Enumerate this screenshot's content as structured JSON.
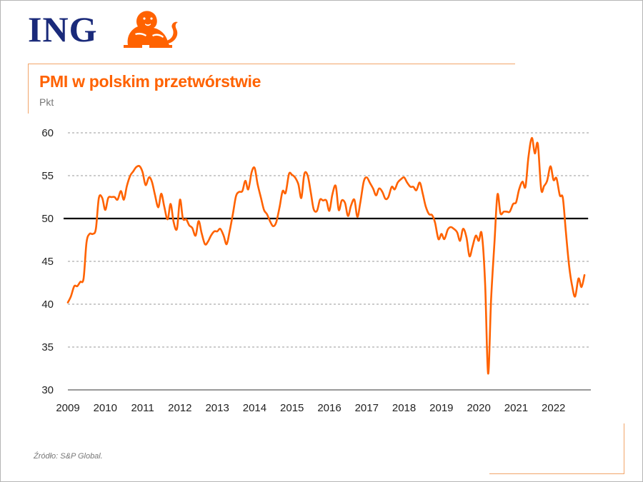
{
  "brand": {
    "logo_text": "ING",
    "logo_color": "#1a2a7a",
    "accent_color": "#ff6200"
  },
  "chart_data": {
    "type": "line",
    "title": "PMI w polskim przetwórstwie",
    "ylabel": "Pkt",
    "xlabel": "",
    "ylim": [
      30,
      60
    ],
    "xlim": [
      2009.0,
      2023.0
    ],
    "yticks": [
      "60",
      "55",
      "50",
      "45",
      "40",
      "35",
      "30"
    ],
    "xticks": [
      "2009",
      "2010",
      "2011",
      "2012",
      "2013",
      "2014",
      "2015",
      "2016",
      "2017",
      "2018",
      "2019",
      "2020",
      "2021",
      "2022"
    ],
    "reference_line": {
      "y": 50,
      "color": "#000000"
    },
    "series": [
      {
        "name": "PMI",
        "color": "#ff6200",
        "x": [
          2009.0,
          2009.08,
          2009.17,
          2009.25,
          2009.33,
          2009.42,
          2009.5,
          2009.58,
          2009.67,
          2009.75,
          2009.83,
          2009.92,
          2010.0,
          2010.08,
          2010.17,
          2010.25,
          2010.33,
          2010.42,
          2010.5,
          2010.58,
          2010.67,
          2010.75,
          2010.83,
          2010.92,
          2011.0,
          2011.08,
          2011.17,
          2011.25,
          2011.33,
          2011.42,
          2011.5,
          2011.58,
          2011.67,
          2011.75,
          2011.83,
          2011.92,
          2012.0,
          2012.08,
          2012.17,
          2012.25,
          2012.33,
          2012.42,
          2012.5,
          2012.58,
          2012.67,
          2012.75,
          2012.83,
          2012.92,
          2013.0,
          2013.08,
          2013.17,
          2013.25,
          2013.33,
          2013.42,
          2013.5,
          2013.58,
          2013.67,
          2013.75,
          2013.83,
          2013.92,
          2014.0,
          2014.08,
          2014.17,
          2014.25,
          2014.33,
          2014.42,
          2014.5,
          2014.58,
          2014.67,
          2014.75,
          2014.83,
          2014.92,
          2015.0,
          2015.08,
          2015.17,
          2015.25,
          2015.33,
          2015.42,
          2015.5,
          2015.58,
          2015.67,
          2015.75,
          2015.83,
          2015.92,
          2016.0,
          2016.08,
          2016.17,
          2016.25,
          2016.33,
          2016.42,
          2016.5,
          2016.58,
          2016.67,
          2016.75,
          2016.83,
          2016.92,
          2017.0,
          2017.08,
          2017.17,
          2017.25,
          2017.33,
          2017.42,
          2017.5,
          2017.58,
          2017.67,
          2017.75,
          2017.83,
          2017.92,
          2018.0,
          2018.08,
          2018.17,
          2018.25,
          2018.33,
          2018.42,
          2018.5,
          2018.58,
          2018.67,
          2018.75,
          2018.83,
          2018.92,
          2019.0,
          2019.08,
          2019.17,
          2019.25,
          2019.33,
          2019.42,
          2019.5,
          2019.58,
          2019.67,
          2019.75,
          2019.83,
          2019.92,
          2020.0,
          2020.08,
          2020.17,
          2020.25,
          2020.33,
          2020.42,
          2020.5,
          2020.58,
          2020.67,
          2020.75,
          2020.83,
          2020.92,
          2021.0,
          2021.08,
          2021.17,
          2021.25,
          2021.33,
          2021.42,
          2021.5,
          2021.58,
          2021.67,
          2021.75,
          2021.83,
          2021.92,
          2022.0,
          2022.08,
          2022.17,
          2022.25,
          2022.33,
          2022.42,
          2022.5,
          2022.58,
          2022.67,
          2022.75,
          2022.83
        ],
        "values": [
          40.2,
          40.9,
          42.1,
          42.1,
          42.6,
          43.0,
          47.2,
          48.2,
          48.2,
          48.8,
          52.4,
          52.4,
          51.0,
          52.4,
          52.5,
          52.5,
          52.2,
          53.2,
          52.2,
          53.8,
          55.0,
          55.5,
          56.0,
          56.1,
          55.4,
          53.9,
          54.8,
          54.3,
          52.8,
          51.3,
          52.9,
          51.4,
          49.9,
          51.7,
          49.6,
          48.8,
          52.2,
          50.0,
          49.9,
          49.2,
          48.9,
          48.0,
          49.7,
          48.3,
          47.0,
          47.3,
          48.0,
          48.5,
          48.5,
          48.8,
          48.0,
          47.0,
          48.5,
          50.6,
          52.6,
          53.1,
          53.2,
          54.4,
          53.4,
          55.4,
          55.9,
          54.0,
          52.4,
          51.0,
          50.5,
          49.6,
          49.1,
          49.6,
          51.4,
          53.2,
          53.0,
          55.2,
          55.1,
          54.8,
          54.0,
          52.4,
          55.2,
          55.0,
          53.1,
          51.1,
          50.9,
          52.2,
          52.1,
          52.1,
          50.9,
          52.8,
          53.8,
          51.0,
          52.1,
          51.8,
          50.3,
          51.5,
          52.2,
          50.2,
          51.9,
          54.3,
          54.8,
          54.2,
          53.5,
          52.7,
          53.5,
          53.1,
          52.3,
          52.5,
          53.7,
          53.4,
          54.2,
          54.6,
          54.8,
          54.2,
          53.7,
          53.7,
          53.3,
          54.2,
          52.9,
          51.4,
          50.5,
          50.4,
          49.5,
          47.6,
          48.2,
          47.6,
          48.7,
          49.0,
          48.8,
          48.4,
          47.4,
          48.8,
          47.8,
          45.6,
          46.7,
          48.0,
          47.4,
          48.2,
          42.4,
          31.9,
          40.6,
          47.2,
          52.8,
          50.6,
          50.8,
          50.8,
          50.8,
          51.7,
          51.9,
          53.4,
          54.3,
          53.7,
          57.2,
          59.4,
          57.6,
          58.7,
          53.4,
          53.8,
          54.4,
          56.1,
          54.5,
          54.7,
          52.7,
          52.4,
          48.5,
          44.4,
          42.1,
          40.9,
          43.0,
          42.0,
          43.4
        ]
      }
    ]
  },
  "footer": {
    "source": "Źródło: S&P Global."
  }
}
